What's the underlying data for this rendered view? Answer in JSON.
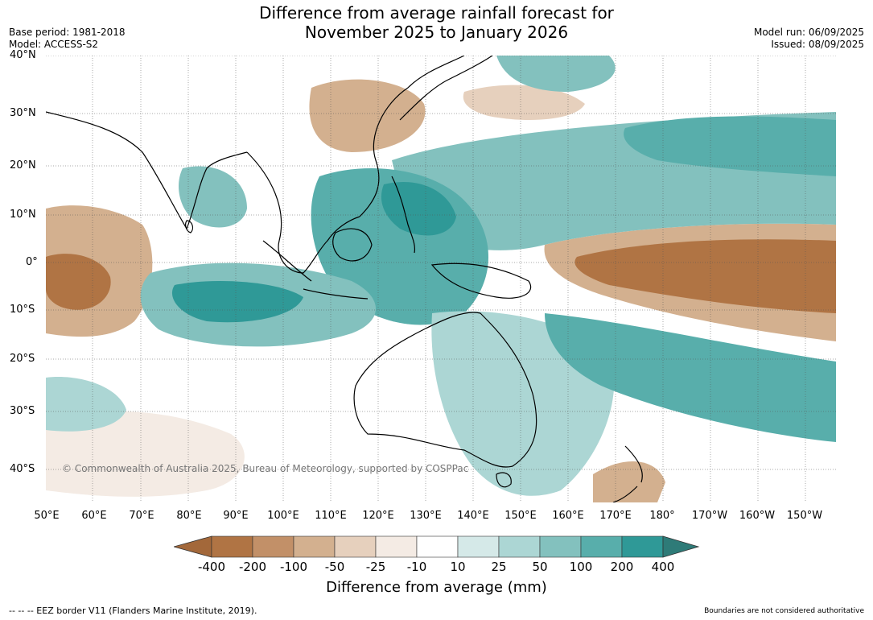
{
  "header": {
    "title_line1": "Difference from average rainfall forecast for",
    "title_line2": "November 2025 to January 2026",
    "base_period": "Base period: 1981-2018",
    "model": "Model: ACCESS-S2",
    "model_run": "Model run: 06/09/2025",
    "issued": "Issued: 08/09/2025"
  },
  "map": {
    "copyright": "© Commonwealth of Australia 2025, Bureau of Meteorology, supported by COSPPac",
    "lat_labels": [
      "40°N",
      "30°N",
      "20°N",
      "10°N",
      "0°",
      "10°S",
      "20°S",
      "30°S",
      "40°S"
    ],
    "lon_labels": [
      "50°E",
      "60°E",
      "70°E",
      "80°E",
      "90°E",
      "100°E",
      "110°E",
      "120°E",
      "130°E",
      "140°E",
      "150°E",
      "160°E",
      "170°E",
      "180°",
      "170°W",
      "160°W",
      "150°W"
    ]
  },
  "legend": {
    "levels": [
      "-400",
      "-200",
      "-100",
      "-50",
      "-25",
      "-10",
      "10",
      "25",
      "50",
      "100",
      "200",
      "400"
    ],
    "title": "Difference from average (mm)",
    "colors": [
      "#a3683a",
      "#b07444",
      "#c29068",
      "#d3b08f",
      "#e6d0bd",
      "#f4ebe4",
      "#ffffff",
      "#d5e9e8",
      "#acd6d4",
      "#83c1be",
      "#58aeab",
      "#2f9997",
      "#2e7b78"
    ]
  },
  "footer": {
    "eez_note": "--  --  -- EEZ border V11 (Flanders Marine Institute, 2019).",
    "disclaimer": "Boundaries are not considered authoritative"
  }
}
